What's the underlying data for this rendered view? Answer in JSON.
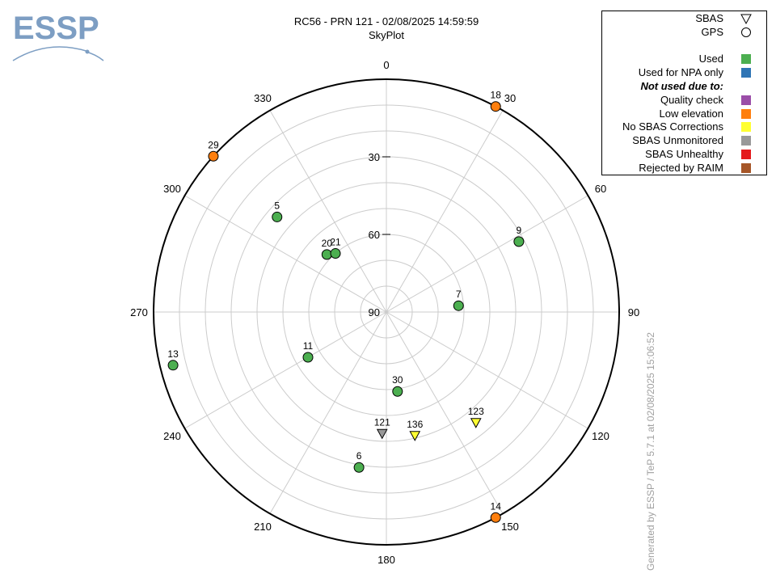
{
  "logo_text": "ESSP",
  "chart_data": {
    "type": "scatter",
    "projection": "polar-skyplot",
    "title": "RC56 - PRN 121 - 02/08/2025 14:59:59",
    "subtitle": "SkyPlot",
    "azimuth_ticks": [
      "0",
      "30",
      "60",
      "90",
      "120",
      "150",
      "180",
      "210",
      "240",
      "270",
      "300",
      "330"
    ],
    "elevation_ticks": [
      "30",
      "60",
      "90"
    ],
    "elevation_range": [
      0,
      90
    ],
    "grid": true,
    "satellites": [
      {
        "prn": "18",
        "azimuth": 28,
        "elevation": 0,
        "type": "GPS",
        "status": "Low elevation"
      },
      {
        "prn": "29",
        "azimuth": 312,
        "elevation": 0,
        "type": "GPS",
        "status": "Low elevation"
      },
      {
        "prn": "14",
        "azimuth": 152,
        "elevation": 0,
        "type": "GPS",
        "status": "Low elevation"
      },
      {
        "prn": "5",
        "azimuth": 311,
        "elevation": 34,
        "type": "GPS",
        "status": "Used"
      },
      {
        "prn": "20",
        "azimuth": 314,
        "elevation": 58,
        "type": "GPS",
        "status": "Used"
      },
      {
        "prn": "21",
        "azimuth": 319,
        "elevation": 60,
        "type": "GPS",
        "status": "Used"
      },
      {
        "prn": "9",
        "azimuth": 62,
        "elevation": 32,
        "type": "GPS",
        "status": "Used"
      },
      {
        "prn": "7",
        "azimuth": 85,
        "elevation": 62,
        "type": "GPS",
        "status": "Used"
      },
      {
        "prn": "13",
        "azimuth": 256,
        "elevation": 5,
        "type": "GPS",
        "status": "Used"
      },
      {
        "prn": "11",
        "azimuth": 240,
        "elevation": 55,
        "type": "GPS",
        "status": "Used"
      },
      {
        "prn": "30",
        "azimuth": 172,
        "elevation": 59,
        "type": "GPS",
        "status": "Used"
      },
      {
        "prn": "6",
        "azimuth": 190,
        "elevation": 29,
        "type": "GPS",
        "status": "Used"
      },
      {
        "prn": "121",
        "azimuth": 182,
        "elevation": 43,
        "type": "SBAS",
        "status": "SBAS Unmonitored"
      },
      {
        "prn": "136",
        "azimuth": 167,
        "elevation": 41,
        "type": "SBAS",
        "status": "No SBAS Corrections"
      },
      {
        "prn": "123",
        "azimuth": 141,
        "elevation": 35,
        "type": "SBAS",
        "status": "No SBAS Corrections"
      }
    ],
    "legend": {
      "placement": "top-right",
      "symbols": [
        {
          "label": "SBAS",
          "shape": "triangle"
        },
        {
          "label": "GPS",
          "shape": "circle"
        }
      ],
      "entries": [
        {
          "label": "Used",
          "color": "#4caf50"
        },
        {
          "label": "Used for NPA only",
          "color": "#2f75b5"
        },
        {
          "label": "Not used due to:",
          "heading": true
        },
        {
          "label": "Quality check",
          "color": "#9b4ea8"
        },
        {
          "label": "Low elevation",
          "color": "#ff7f0e"
        },
        {
          "label": "No SBAS Corrections",
          "color": "#ffff33"
        },
        {
          "label": "SBAS Unmonitored",
          "color": "#999999"
        },
        {
          "label": "SBAS Unhealthy",
          "color": "#e41a1c"
        },
        {
          "label": "Rejected by RAIM",
          "color": "#a65628"
        }
      ]
    }
  },
  "credit": "Generated by ESSP / TeP 5.7.1 at 02/08/2025 15:06:52"
}
